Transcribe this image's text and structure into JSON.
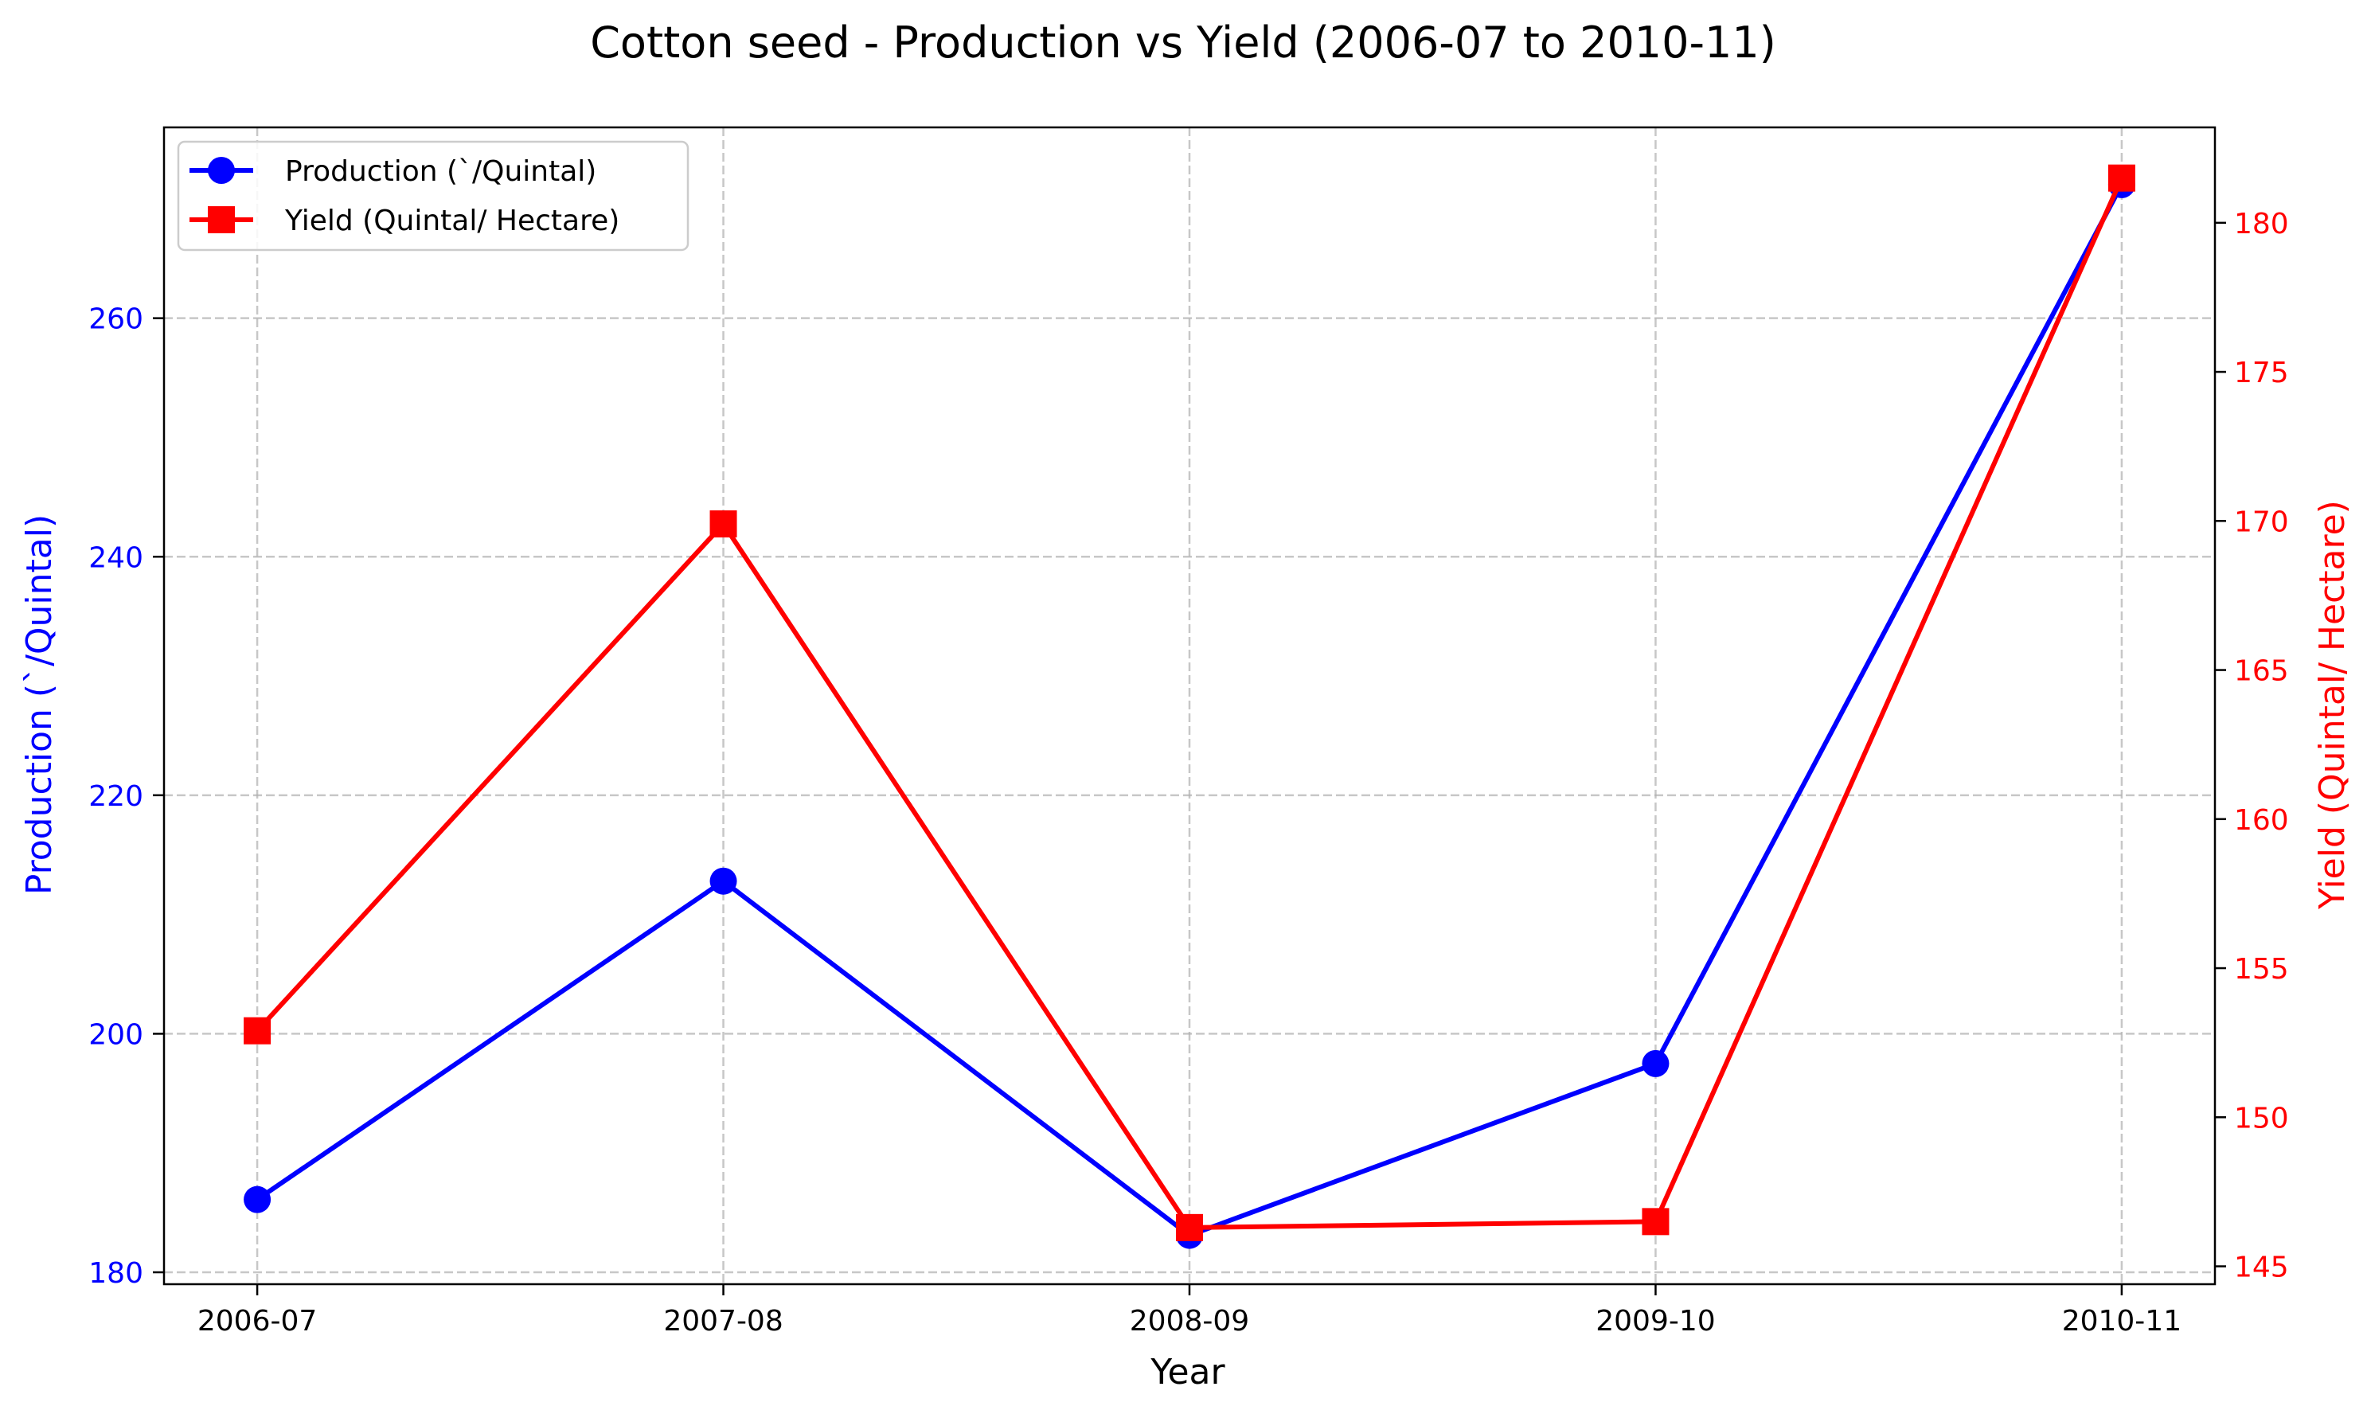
{
  "chart_data": {
    "type": "line",
    "title": "Cotton seed - Production vs Yield (2006-07 to 2010-11)",
    "xlabel": "Year",
    "categories": [
      "2006-07",
      "2007-08",
      "2008-09",
      "2009-10",
      "2010-11"
    ],
    "grid": true,
    "legend": "top-left",
    "y_left": {
      "label": "Production (`/Quintal)",
      "color": "#0000ff",
      "range": [
        179,
        276
      ],
      "ticks": [
        180,
        200,
        220,
        240,
        260
      ]
    },
    "y_right": {
      "label": "Yield (Quintal/ Hectare)",
      "color": "#ff0000",
      "range": [
        144.4,
        183.2
      ],
      "ticks": [
        145,
        150,
        155,
        160,
        165,
        170,
        175,
        180
      ]
    },
    "series": [
      {
        "name": "Production (`/Quintal)",
        "axis": "left",
        "color": "#0000ff",
        "marker": "circle",
        "values": [
          186.1,
          212.8,
          183.1,
          197.5,
          271.2
        ]
      },
      {
        "name": "Yield (Quintal/ Hectare)",
        "axis": "right",
        "color": "#ff0000",
        "marker": "square",
        "values": [
          152.9,
          169.9,
          146.3,
          146.5,
          181.5
        ]
      }
    ]
  }
}
